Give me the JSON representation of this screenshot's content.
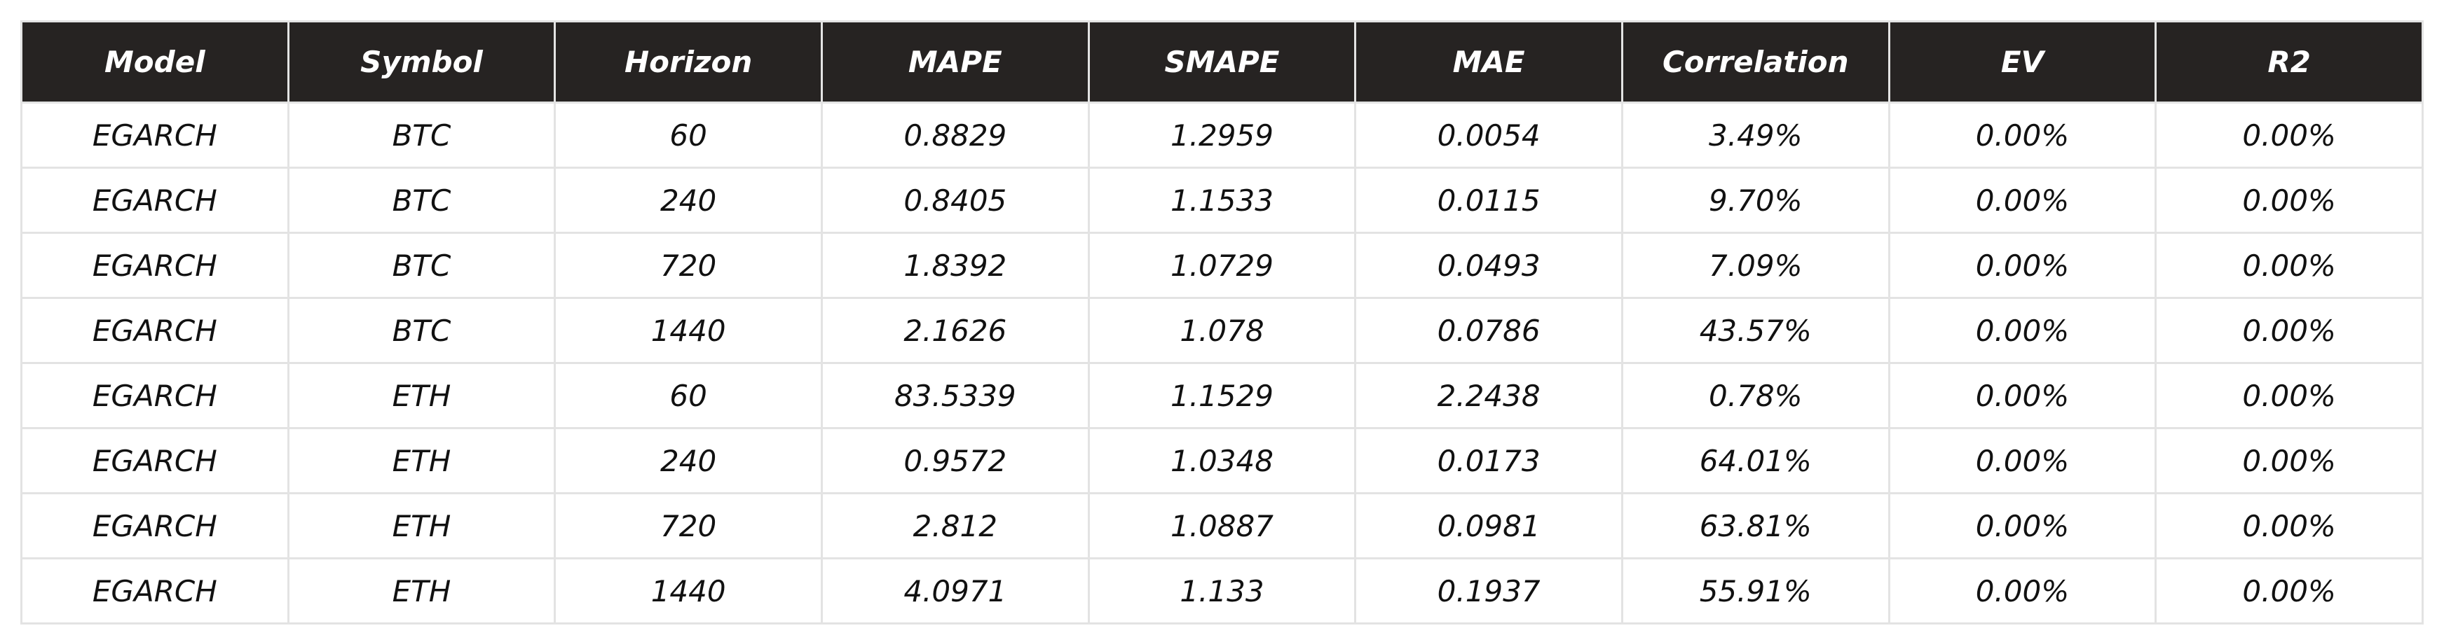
{
  "chart_data": {
    "type": "table",
    "columns": [
      "Model",
      "Symbol",
      "Horizon",
      "MAPE",
      "SMAPE",
      "MAE",
      "Correlation",
      "EV",
      "R2"
    ],
    "rows": [
      [
        "EGARCH",
        "BTC",
        "60",
        "0.8829",
        "1.2959",
        "0.0054",
        "3.49%",
        "0.00%",
        "0.00%"
      ],
      [
        "EGARCH",
        "BTC",
        "240",
        "0.8405",
        "1.1533",
        "0.0115",
        "9.70%",
        "0.00%",
        "0.00%"
      ],
      [
        "EGARCH",
        "BTC",
        "720",
        "1.8392",
        "1.0729",
        "0.0493",
        "7.09%",
        "0.00%",
        "0.00%"
      ],
      [
        "EGARCH",
        "BTC",
        "1440",
        "2.1626",
        "1.078",
        "0.0786",
        "43.57%",
        "0.00%",
        "0.00%"
      ],
      [
        "EGARCH",
        "ETH",
        "60",
        "83.5339",
        "1.1529",
        "2.2438",
        "0.78%",
        "0.00%",
        "0.00%"
      ],
      [
        "EGARCH",
        "ETH",
        "240",
        "0.9572",
        "1.0348",
        "0.0173",
        "64.01%",
        "0.00%",
        "0.00%"
      ],
      [
        "EGARCH",
        "ETH",
        "720",
        "2.812",
        "1.0887",
        "0.0981",
        "63.81%",
        "0.00%",
        "0.00%"
      ],
      [
        "EGARCH",
        "ETH",
        "1440",
        "4.0971",
        "1.133",
        "0.1937",
        "55.91%",
        "0.00%",
        "0.00%"
      ]
    ]
  },
  "colors": {
    "header_bg": "#262322",
    "header_text": "#ffffff",
    "grid": "#e3e3e3",
    "cell_text": "#111111"
  }
}
